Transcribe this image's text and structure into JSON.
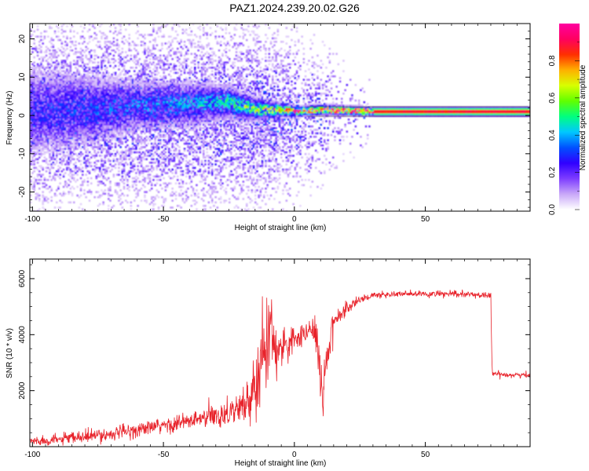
{
  "title": "PAZ1.2024.239.20.02.G26",
  "chart_data": [
    {
      "type": "heatmap",
      "xlabel": "Height of straight line (km)",
      "ylabel": "Frequency (Hz)",
      "xlim": [
        -101,
        90
      ],
      "ylim": [
        -25,
        24
      ],
      "xticks": [
        -100,
        -50,
        0,
        50
      ],
      "yticks": [
        -20,
        -10,
        0,
        10,
        20
      ],
      "colorbar": {
        "label": "Normalized spectral amplitude",
        "range": [
          0,
          1
        ],
        "ticks": [
          "0.0",
          "0.2",
          "0.4",
          "0.6",
          "0.8"
        ],
        "colors": [
          "#ffffff",
          "#c9a8f8",
          "#7d3cff",
          "#3000ff",
          "#0050ff",
          "#00c8ff",
          "#00ff80",
          "#60ff00",
          "#d8ff00",
          "#ffb000",
          "#ff3000",
          "#ff0060",
          "#ff00a0"
        ]
      },
      "ridge": [
        {
          "x": -100,
          "f": 1.0,
          "amp": 0.25,
          "spread": 6.0
        },
        {
          "x": -80,
          "f": 1.5,
          "amp": 0.28,
          "spread": 5.0
        },
        {
          "x": -60,
          "f": 2.5,
          "amp": 0.32,
          "spread": 3.5
        },
        {
          "x": -40,
          "f": 3.0,
          "amp": 0.36,
          "spread": 3.0
        },
        {
          "x": -25,
          "f": 3.5,
          "amp": 0.45,
          "spread": 2.2
        },
        {
          "x": -15,
          "f": 1.5,
          "amp": 0.55,
          "spread": 1.6
        },
        {
          "x": -5,
          "f": 1.5,
          "amp": 0.65,
          "spread": 1.0
        },
        {
          "x": 0,
          "f": 1.0,
          "amp": 0.85,
          "spread": 0.7
        },
        {
          "x": 10,
          "f": 1.5,
          "amp": 0.9,
          "spread": 0.7
        },
        {
          "x": 30,
          "f": 1.0,
          "amp": 0.95,
          "spread": 0.6
        },
        {
          "x": 60,
          "f": 1.0,
          "amp": 0.97,
          "spread": 0.6
        },
        {
          "x": 90,
          "f": 1.0,
          "amp": 0.98,
          "spread": 0.6
        }
      ]
    },
    {
      "type": "line",
      "xlabel": "Height of straight line (km)",
      "ylabel": "SNR (10 * v/v)",
      "xlim": [
        -101,
        90
      ],
      "ylim": [
        0,
        6700
      ],
      "xticks": [
        -100,
        -50,
        0,
        50
      ],
      "yticks": [
        2000,
        4000,
        6000
      ],
      "line_color": "#e8222a",
      "series": [
        {
          "x": [
            -100,
            -90,
            -80,
            -70,
            -60,
            -50,
            -40,
            -35,
            -30,
            -25,
            -20,
            -17,
            -14,
            -12,
            -10,
            -8,
            -6,
            -4,
            -2,
            0,
            2,
            4,
            6,
            8,
            9,
            10,
            11,
            12,
            13,
            14,
            15,
            17,
            20,
            25,
            30,
            35,
            40,
            50,
            60,
            70,
            75,
            75.5,
            80,
            85,
            90
          ],
          "y": [
            200,
            250,
            350,
            450,
            600,
            750,
            900,
            1000,
            1100,
            1250,
            1400,
            1700,
            2600,
            3300,
            4300,
            3800,
            3300,
            3500,
            3650,
            3800,
            3900,
            4000,
            4100,
            4300,
            3800,
            2300,
            1800,
            3000,
            3400,
            4300,
            4500,
            4700,
            4950,
            5250,
            5400,
            5430,
            5450,
            5450,
            5450,
            5420,
            5400,
            2600,
            2580,
            2560,
            2550
          ],
          "noise": [
            150,
            160,
            180,
            200,
            220,
            250,
            280,
            320,
            400,
            450,
            500,
            650,
            900,
            1200,
            1400,
            900,
            600,
            500,
            400,
            350,
            350,
            350,
            400,
            600,
            900,
            900,
            700,
            500,
            400,
            350,
            300,
            250,
            220,
            150,
            110,
            100,
            100,
            100,
            100,
            100,
            100,
            100,
            80,
            80,
            80
          ]
        }
      ]
    }
  ]
}
